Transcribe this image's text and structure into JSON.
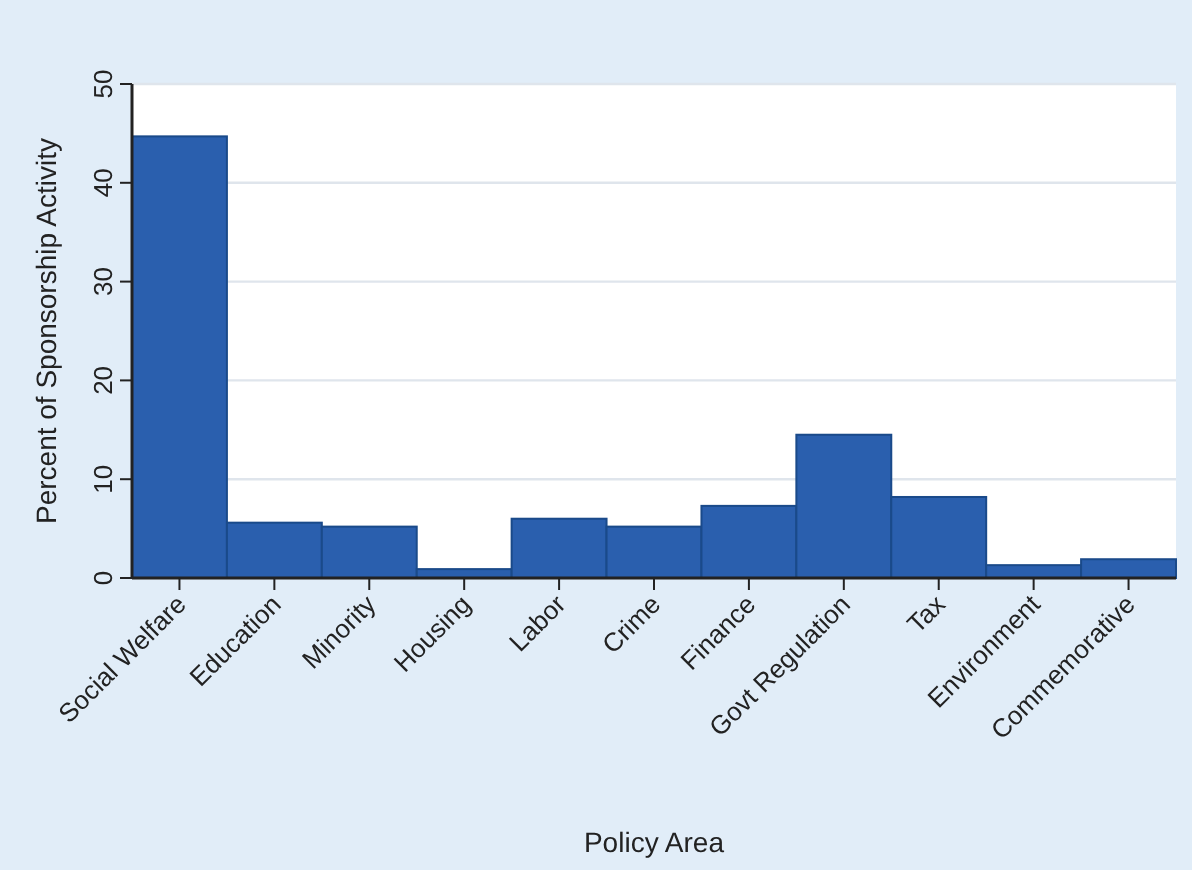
{
  "chart_data": {
    "type": "bar",
    "xlabel": "Policy Area",
    "ylabel": "Percent of Sponsorship Activity",
    "categories": [
      "Social Welfare",
      "Education",
      "Minority",
      "Housing",
      "Labor",
      "Crime",
      "Finance",
      "Govt Regulation",
      "Tax",
      "Environment",
      "Commemorative"
    ],
    "values": [
      44.7,
      5.6,
      5.2,
      0.9,
      6.0,
      5.2,
      7.3,
      14.5,
      8.2,
      1.3,
      1.9
    ],
    "color": "#2a5fae",
    "ylim": [
      0,
      50
    ],
    "yticks": [
      0,
      10,
      20,
      30,
      40,
      50
    ],
    "grid": "y"
  }
}
